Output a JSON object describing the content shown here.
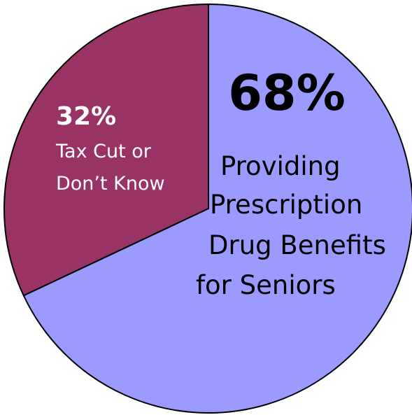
{
  "chart_data": {
    "type": "pie",
    "slices": [
      {
        "value": 68,
        "percent_label": "68%",
        "label_lines": [
          "Providing",
          "Prescription",
          "Drug Benefits",
          "for Seniors"
        ],
        "color": "#9b9bff"
      },
      {
        "value": 32,
        "percent_label": "32%",
        "label_lines": [
          "Tax Cut or",
          "Don’t Know"
        ],
        "color": "#993366"
      }
    ]
  }
}
